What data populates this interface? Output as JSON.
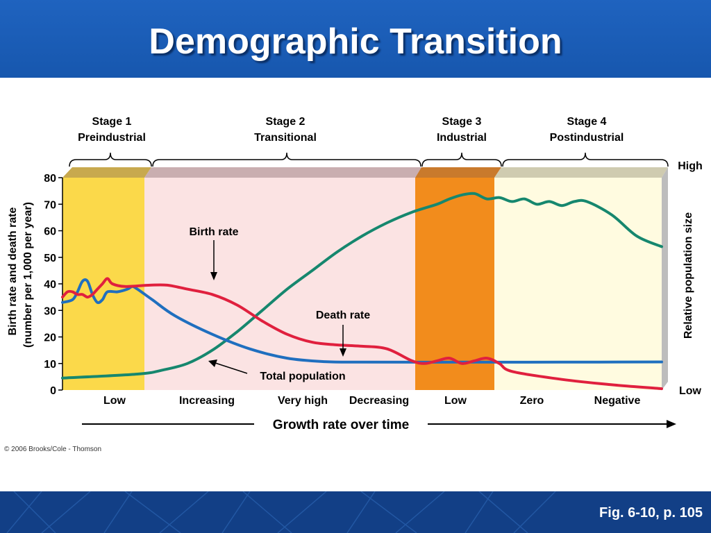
{
  "slide": {
    "title": "Demographic Transition",
    "caption": "Fig. 6-10, p. 105",
    "copyright": "© 2006 Brooks/Cole - Thomson"
  },
  "chart_data": {
    "type": "line",
    "stages": [
      {
        "line1": "Stage 1",
        "line2": "Preindustrial",
        "color": "#fbd94a",
        "band_color": "#c8a94e"
      },
      {
        "line1": "Stage 2",
        "line2": "Transitional",
        "color": "#fbe3e3",
        "band_color": "#c9aeb0"
      },
      {
        "line1": "Stage 3",
        "line2": "Industrial",
        "color": "#f28c1c",
        "band_color": "#c97a2c"
      },
      {
        "line1": "Stage 4",
        "line2": "Postindustrial",
        "color": "#fffbe0",
        "band_color": "#cfcbb0"
      }
    ],
    "ylabel_line1": "Birth rate and death rate",
    "ylabel_line2": "(number per 1,000 per year)",
    "ylabel_right": "Relative population size",
    "right_axis_high": "High",
    "right_axis_low": "Low",
    "yticks": [
      0,
      10,
      20,
      30,
      40,
      50,
      60,
      70,
      80
    ],
    "ylim": [
      0,
      80
    ],
    "growth_rate_labels": [
      "Low",
      "Increasing",
      "Very high",
      "Decreasing",
      "Low",
      "Zero",
      "Negative"
    ],
    "xlabel": "Growth rate over time",
    "annotations": {
      "birth_rate": "Birth rate",
      "death_rate": "Death rate",
      "total_population": "Total population"
    },
    "series": [
      {
        "id": "birth",
        "color": "#e0203e",
        "points": [
          [
            0,
            35
          ],
          [
            2,
            37
          ],
          [
            4,
            37
          ],
          [
            6,
            36
          ],
          [
            8,
            36
          ],
          [
            10,
            35
          ],
          [
            12,
            36
          ],
          [
            14,
            38
          ],
          [
            16,
            40
          ],
          [
            18,
            42
          ],
          [
            20,
            40
          ],
          [
            25,
            39
          ],
          [
            35,
            39.5
          ],
          [
            42,
            39.5
          ],
          [
            50,
            38
          ],
          [
            60,
            36
          ],
          [
            70,
            32
          ],
          [
            80,
            26
          ],
          [
            90,
            21
          ],
          [
            100,
            18
          ],
          [
            110,
            17
          ],
          [
            120,
            16.5
          ],
          [
            130,
            15.5
          ],
          [
            140,
            11
          ],
          [
            145,
            10
          ],
          [
            150,
            11
          ],
          [
            155,
            12
          ],
          [
            160,
            10
          ],
          [
            165,
            11
          ],
          [
            170,
            12
          ],
          [
            175,
            10
          ],
          [
            180,
            7
          ],
          [
            200,
            4
          ],
          [
            220,
            2
          ],
          [
            240,
            0.5
          ]
        ]
      },
      {
        "id": "death",
        "color": "#1f6fbf",
        "points": [
          [
            0,
            33
          ],
          [
            4,
            34
          ],
          [
            6,
            37
          ],
          [
            8,
            41
          ],
          [
            10,
            41
          ],
          [
            12,
            36
          ],
          [
            14,
            33
          ],
          [
            16,
            34
          ],
          [
            18,
            37
          ],
          [
            22,
            37
          ],
          [
            26,
            38
          ],
          [
            28,
            39
          ],
          [
            30,
            38
          ],
          [
            36,
            34
          ],
          [
            45,
            28
          ],
          [
            60,
            21
          ],
          [
            75,
            15.5
          ],
          [
            90,
            12
          ],
          [
            105,
            10.7
          ],
          [
            120,
            10.5
          ],
          [
            160,
            10.5
          ],
          [
            200,
            10.5
          ],
          [
            240,
            10.6
          ]
        ]
      },
      {
        "id": "population",
        "color": "#16876e",
        "points": [
          [
            0,
            4.5
          ],
          [
            30,
            6
          ],
          [
            40,
            7.5
          ],
          [
            50,
            10
          ],
          [
            60,
            15
          ],
          [
            70,
            22
          ],
          [
            80,
            30
          ],
          [
            90,
            38
          ],
          [
            100,
            45
          ],
          [
            110,
            52
          ],
          [
            120,
            58
          ],
          [
            130,
            63
          ],
          [
            140,
            67
          ],
          [
            150,
            70
          ],
          [
            155,
            72
          ],
          [
            160,
            73.5
          ],
          [
            165,
            74
          ],
          [
            170,
            72
          ],
          [
            175,
            72.5
          ],
          [
            180,
            71
          ],
          [
            185,
            72
          ],
          [
            190,
            70
          ],
          [
            195,
            71
          ],
          [
            200,
            69.5
          ],
          [
            205,
            71
          ],
          [
            210,
            71
          ],
          [
            220,
            66
          ],
          [
            230,
            58
          ],
          [
            240,
            54
          ]
        ]
      }
    ]
  }
}
